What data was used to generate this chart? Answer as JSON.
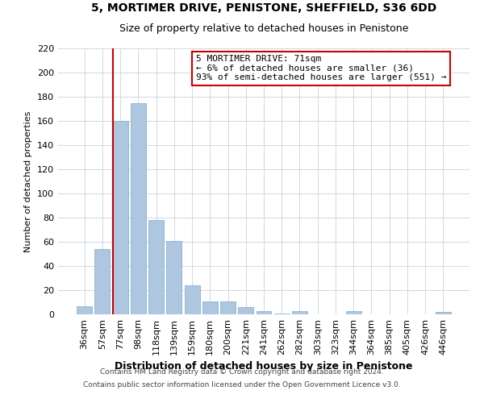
{
  "title": "5, MORTIMER DRIVE, PENISTONE, SHEFFIELD, S36 6DD",
  "subtitle": "Size of property relative to detached houses in Penistone",
  "xlabel": "Distribution of detached houses by size in Penistone",
  "ylabel": "Number of detached properties",
  "bar_labels": [
    "36sqm",
    "57sqm",
    "77sqm",
    "98sqm",
    "118sqm",
    "139sqm",
    "159sqm",
    "180sqm",
    "200sqm",
    "221sqm",
    "241sqm",
    "262sqm",
    "282sqm",
    "303sqm",
    "323sqm",
    "344sqm",
    "364sqm",
    "385sqm",
    "405sqm",
    "426sqm",
    "446sqm"
  ],
  "bar_heights": [
    7,
    54,
    160,
    175,
    78,
    61,
    24,
    11,
    11,
    6,
    3,
    1,
    3,
    0,
    0,
    3,
    0,
    0,
    0,
    0,
    2
  ],
  "bar_color": "#aec6df",
  "bar_edge_color": "#7aaac8",
  "ylim": [
    0,
    220
  ],
  "yticks": [
    0,
    20,
    40,
    60,
    80,
    100,
    120,
    140,
    160,
    180,
    200,
    220
  ],
  "annotation_title": "5 MORTIMER DRIVE: 71sqm",
  "annotation_line1": "← 6% of detached houses are smaller (36)",
  "annotation_line2": "93% of semi-detached houses are larger (551) →",
  "footer_line1": "Contains HM Land Registry data © Crown copyright and database right 2024.",
  "footer_line2": "Contains public sector information licensed under the Open Government Licence v3.0.",
  "red_line_color": "#cc0000",
  "annotation_box_color": "#ffffff",
  "annotation_box_edge": "#cc0000",
  "background_color": "#ffffff",
  "grid_color": "#d0d8e0",
  "title_fontsize": 10,
  "subtitle_fontsize": 9,
  "ylabel_fontsize": 8,
  "xlabel_fontsize": 9,
  "footer_fontsize": 6.5,
  "tick_fontsize": 8,
  "annot_fontsize": 8
}
